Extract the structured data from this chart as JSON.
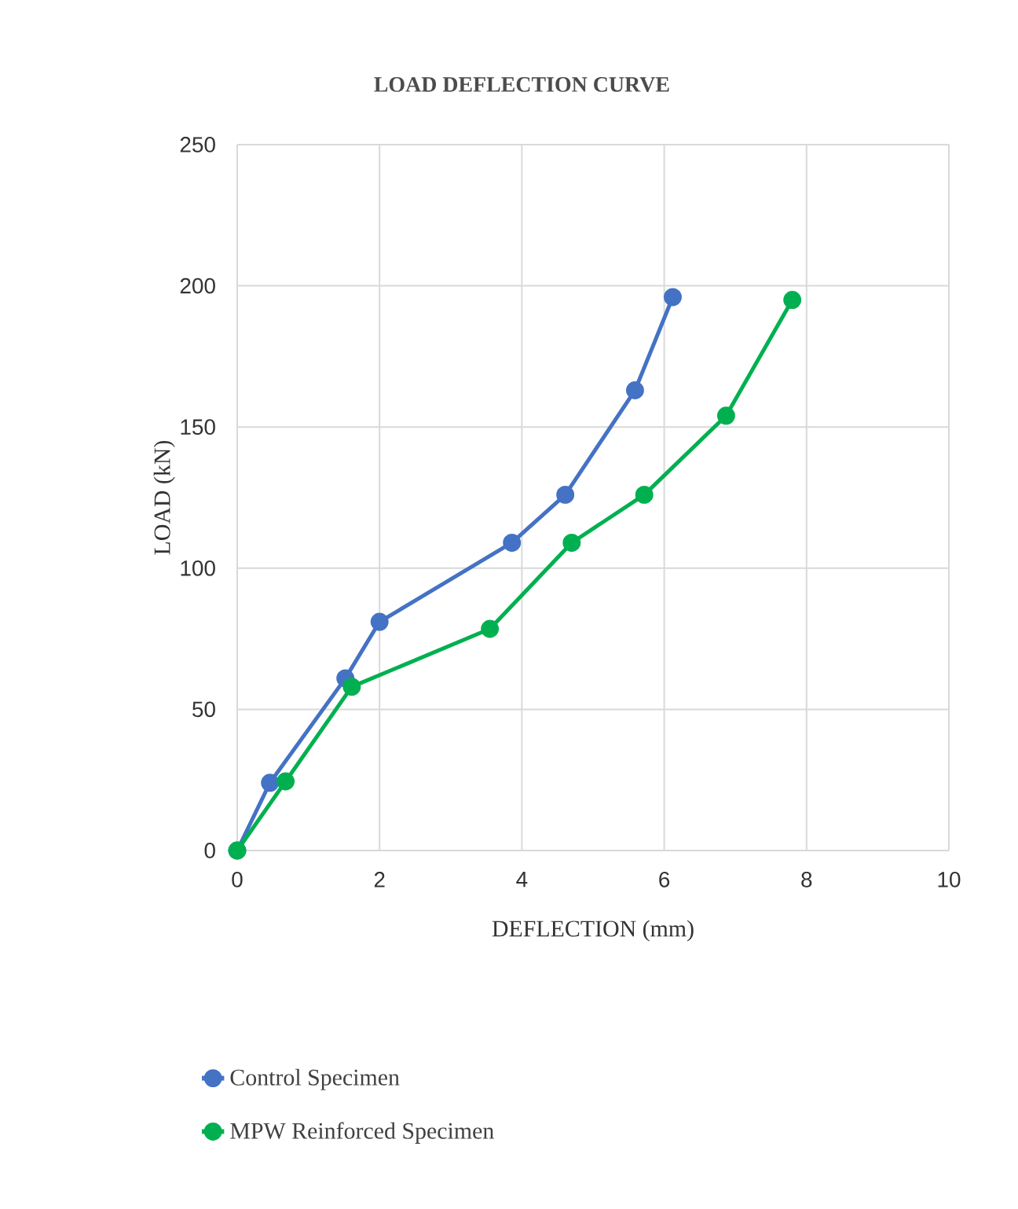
{
  "chart_data": {
    "type": "line",
    "title": "LOAD DEFLECTION CURVE",
    "xlabel": "DEFLECTION   (mm)",
    "ylabel": "LOAD (kN)",
    "xlim": [
      0,
      10
    ],
    "xticks": [
      0,
      2,
      4,
      6,
      8,
      10
    ],
    "ylim": [
      0,
      250
    ],
    "yticks": [
      0,
      50,
      100,
      150,
      200,
      250
    ],
    "grid": true,
    "legend": "bottom",
    "marker": "circle",
    "line_style": "solid",
    "series": [
      {
        "name": "Control Specimen",
        "color": "#4472c4",
        "x": [
          0,
          0.46,
          1.52,
          2.0,
          3.86,
          4.61,
          5.59,
          6.12
        ],
        "values": [
          0,
          24,
          61,
          81,
          109,
          126,
          163,
          196
        ]
      },
      {
        "name": "MPW Reinforced Specimen",
        "color": "#00b050",
        "x": [
          0,
          0.68,
          1.61,
          3.55,
          4.7,
          5.72,
          6.87,
          7.8
        ],
        "values": [
          0,
          24.5,
          58,
          78.5,
          109,
          126,
          154,
          195
        ]
      }
    ]
  }
}
